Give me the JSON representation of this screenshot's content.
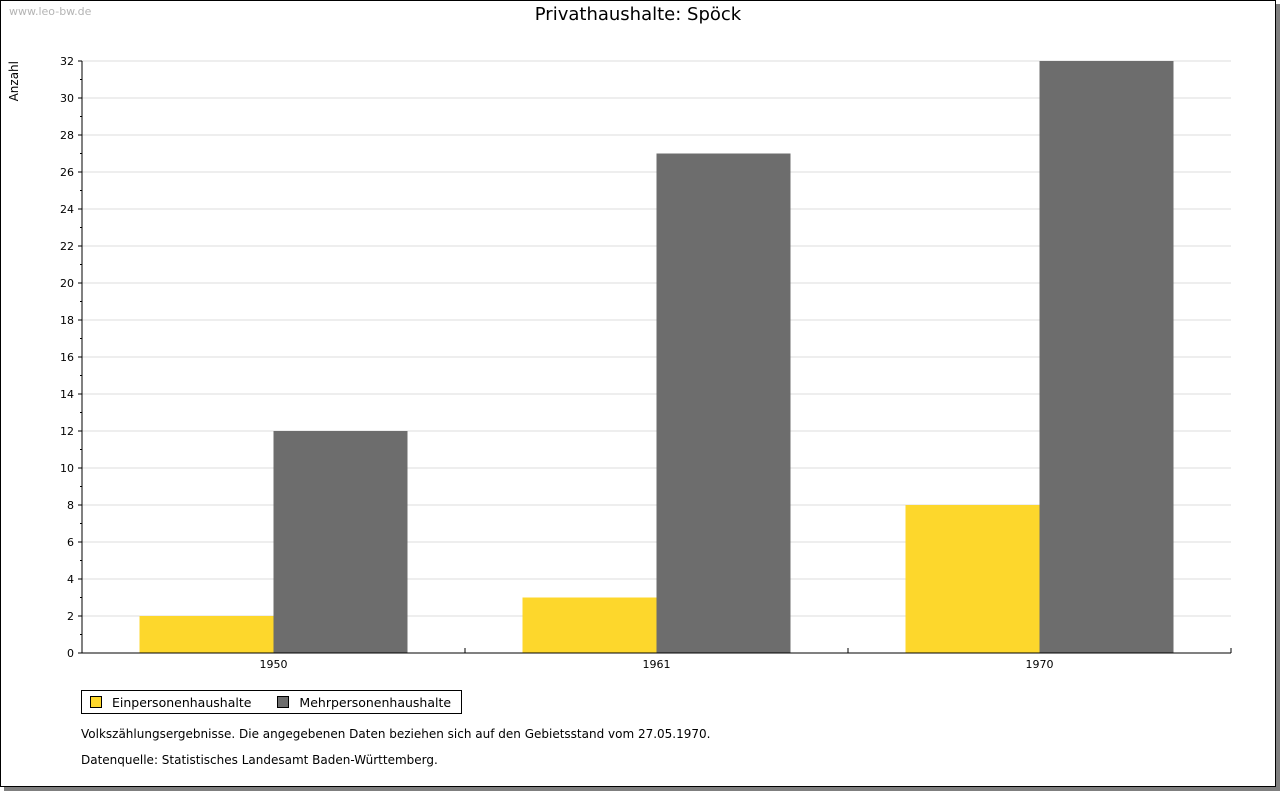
{
  "watermark": "www.leo-bw.de",
  "note": "Volkszählungsergebnisse. Die angegebenen Daten beziehen sich auf den Gebietsstand vom 27.05.1970.",
  "source": "Datenquelle: Statistisches Landesamt Baden-Württemberg.",
  "chart_data": {
    "type": "bar",
    "title": "Privathaushalte: Spöck",
    "xlabel": "",
    "ylabel": "Anzahl",
    "categories": [
      "1950",
      "1961",
      "1970"
    ],
    "series": [
      {
        "name": "Einpersonenhaushalte",
        "color": "#fdd72c",
        "values": [
          2,
          3,
          8
        ]
      },
      {
        "name": "Mehrpersonenhaushalte",
        "color": "#6d6d6d",
        "values": [
          12,
          27,
          32
        ]
      }
    ],
    "ylim": [
      0,
      32
    ],
    "ytick_step": 2,
    "grid": true,
    "legend": "bottom-left"
  }
}
